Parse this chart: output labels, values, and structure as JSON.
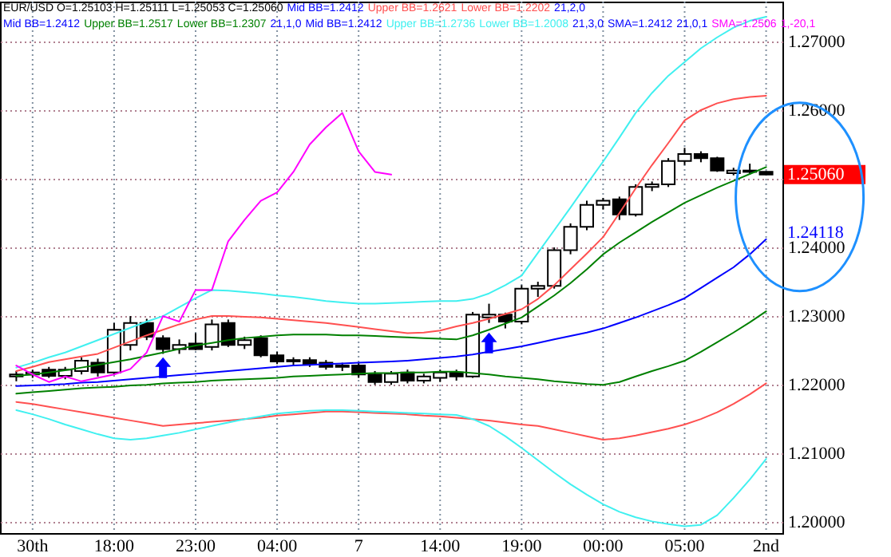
{
  "chart_data": {
    "type": "candlestick",
    "title": "EUR/USD O=1.25103 H=1.25111 L=1.25053 C=1.25060",
    "color": "#000000",
    "categories": [
      null,
      "30th",
      null,
      null,
      null,
      null,
      "18:00",
      null,
      null,
      null,
      null,
      "23:00",
      null,
      null,
      null,
      null,
      "04:00",
      null,
      null,
      null,
      null,
      "7",
      null,
      null,
      null,
      null,
      "14:00",
      null,
      null,
      null,
      null,
      "19:00",
      null,
      null,
      null,
      null,
      "00:00",
      null,
      null,
      null,
      null,
      "05:00",
      null,
      null,
      null,
      null,
      "2nd"
    ],
    "ohlc": [
      [
        1.2212,
        1.222,
        1.2205,
        1.2215
      ],
      [
        1.2215,
        1.2222,
        1.221,
        1.2218
      ],
      [
        1.2222,
        1.2226,
        1.221,
        1.2213
      ],
      [
        1.2213,
        1.2226,
        1.2208,
        1.2222
      ],
      [
        1.222,
        1.224,
        1.2215,
        1.2235
      ],
      [
        1.2232,
        1.2238,
        1.2212,
        1.2218
      ],
      [
        1.2218,
        1.229,
        1.2215,
        1.228
      ],
      [
        1.2258,
        1.23,
        1.225,
        1.229
      ],
      [
        1.229,
        1.2296,
        1.2265,
        1.227
      ],
      [
        1.2268,
        1.2272,
        1.2245,
        1.2252
      ],
      [
        1.2252,
        1.2266,
        1.2245,
        1.2258
      ],
      [
        1.226,
        1.2275,
        1.225,
        1.2252
      ],
      [
        1.2255,
        1.2295,
        1.225,
        1.2288
      ],
      [
        1.229,
        1.2295,
        1.2255,
        1.2258
      ],
      [
        1.2258,
        1.227,
        1.2252,
        1.2265
      ],
      [
        1.2268,
        1.2272,
        1.224,
        1.2243
      ],
      [
        1.2243,
        1.2248,
        1.223,
        1.2234
      ],
      [
        1.2234,
        1.224,
        1.2228,
        1.2236
      ],
      [
        1.2236,
        1.224,
        1.2226,
        1.223
      ],
      [
        1.2232,
        1.2236,
        1.2222,
        1.2226
      ],
      [
        1.2226,
        1.2232,
        1.222,
        1.2228
      ],
      [
        1.2228,
        1.2232,
        1.221,
        1.2215
      ],
      [
        1.2215,
        1.222,
        1.22,
        1.2204
      ],
      [
        1.2204,
        1.222,
        1.22,
        1.2216
      ],
      [
        1.2218,
        1.2222,
        1.2202,
        1.2206
      ],
      [
        1.2206,
        1.2216,
        1.2202,
        1.2212
      ],
      [
        1.221,
        1.2222,
        1.2204,
        1.2218
      ],
      [
        1.2218,
        1.2222,
        1.2206,
        1.2212
      ],
      [
        1.2212,
        1.2306,
        1.221,
        1.2302
      ],
      [
        1.2298,
        1.2318,
        1.229,
        1.2302
      ],
      [
        1.2302,
        1.2305,
        1.2282,
        1.2292
      ],
      [
        1.2292,
        1.2345,
        1.2288,
        1.234
      ],
      [
        1.234,
        1.235,
        1.2328,
        1.2344
      ],
      [
        1.2344,
        1.24,
        1.234,
        1.2396
      ],
      [
        1.2396,
        1.2435,
        1.239,
        1.243
      ],
      [
        1.243,
        1.2468,
        1.2425,
        1.2462
      ],
      [
        1.2462,
        1.2472,
        1.2455,
        1.2468
      ],
      [
        1.247,
        1.2474,
        1.244,
        1.2448
      ],
      [
        1.2448,
        1.2492,
        1.2445,
        1.2488
      ],
      [
        1.2488,
        1.2496,
        1.2482,
        1.2492
      ],
      [
        1.2492,
        1.253,
        1.2488,
        1.2526
      ],
      [
        1.2526,
        1.2545,
        1.252,
        1.2536
      ],
      [
        1.2536,
        1.254,
        1.2524,
        1.253
      ],
      [
        1.253,
        1.2532,
        1.251,
        1.2512
      ],
      [
        1.2508,
        1.2516,
        1.2505,
        1.2512
      ],
      [
        1.2512,
        1.2522,
        1.2506,
        1.251
      ],
      [
        1.25103,
        1.25111,
        1.25053,
        1.2506
      ]
    ],
    "series": [
      {
        "type": "line",
        "color": "#ff5050",
        "values": [
          1.222,
          1.2226,
          1.2233,
          1.2237,
          1.2241,
          1.2245,
          1.2254,
          1.2263,
          1.2272,
          1.228,
          1.2288,
          1.2295,
          1.23,
          1.23,
          1.2299,
          1.2298,
          1.2296,
          1.2294,
          1.2292,
          1.229,
          1.2287,
          1.2284,
          1.2281,
          1.2278,
          1.2275,
          1.2276,
          1.2279,
          1.2285,
          1.229,
          1.2296,
          1.2303,
          1.231,
          1.2325,
          1.2345,
          1.2368,
          1.2391,
          1.2415,
          1.245,
          1.2486,
          1.252,
          1.2552,
          1.2585,
          1.26,
          1.261,
          1.2616,
          1.2619,
          1.2621
        ]
      },
      {
        "type": "line",
        "color": "#ff5050",
        "values": [
          1.2175,
          1.2172,
          1.2168,
          1.2164,
          1.216,
          1.2156,
          1.2152,
          1.2148,
          1.2144,
          1.214,
          1.2142,
          1.2144,
          1.2146,
          1.2148,
          1.215,
          1.2152,
          1.2155,
          1.2157,
          1.2159,
          1.2161,
          1.2161,
          1.216,
          1.2159,
          1.2158,
          1.2157,
          1.2155,
          1.2154,
          1.2152,
          1.215,
          1.2148,
          1.2145,
          1.2142,
          1.214,
          1.2135,
          1.213,
          1.2125,
          1.212,
          1.2122,
          1.2126,
          1.2131,
          1.2136,
          1.2142,
          1.215,
          1.216,
          1.2172,
          1.2186,
          1.2202
        ]
      },
      {
        "type": "line",
        "color": "#008000",
        "values": [
          1.2213,
          1.2215,
          1.2218,
          1.2221,
          1.2225,
          1.2229,
          1.2233,
          1.2237,
          1.2242,
          1.2247,
          1.2252,
          1.2257,
          1.2261,
          1.2265,
          1.2268,
          1.227,
          1.2272,
          1.2273,
          1.2273,
          1.2273,
          1.2272,
          1.2272,
          1.2271,
          1.227,
          1.2269,
          1.2268,
          1.2267,
          1.2266,
          1.2272,
          1.228,
          1.2289,
          1.2298,
          1.2314,
          1.233,
          1.2348,
          1.2368,
          1.239,
          1.2407,
          1.2422,
          1.2437,
          1.2451,
          1.2465,
          1.2476,
          1.2487,
          1.2497,
          1.2507,
          1.2517
        ]
      },
      {
        "type": "line",
        "color": "#008000",
        "values": [
          1.2187,
          1.2189,
          1.2191,
          1.2193,
          1.2195,
          1.2196,
          1.2197,
          1.2199,
          1.22,
          1.2202,
          1.2203,
          1.2204,
          1.2206,
          1.2207,
          1.2208,
          1.2209,
          1.221,
          1.2212,
          1.2213,
          1.2214,
          1.2215,
          1.2216,
          1.2217,
          1.2217,
          1.2218,
          1.2218,
          1.2219,
          1.2219,
          1.2217,
          1.2215,
          1.2212,
          1.221,
          1.2208,
          1.2205,
          1.2203,
          1.2201,
          1.22,
          1.2204,
          1.2212,
          1.222,
          1.2227,
          1.2235,
          1.2248,
          1.2262,
          1.2276,
          1.2291,
          1.2307
        ]
      },
      {
        "type": "line",
        "color": "#40f0f0",
        "values": [
          1.2225,
          1.2232,
          1.224,
          1.2247,
          1.2256,
          1.2265,
          1.2274,
          1.2283,
          1.2292,
          1.23,
          1.2313,
          1.2326,
          1.2338,
          1.2337,
          1.2335,
          1.2333,
          1.233,
          1.2328,
          1.2325,
          1.2322,
          1.232,
          1.2318,
          1.2318,
          1.2319,
          1.232,
          1.2321,
          1.2322,
          1.2322,
          1.2325,
          1.2333,
          1.2345,
          1.2359,
          1.2392,
          1.2425,
          1.2458,
          1.2492,
          1.2525,
          1.256,
          1.2596,
          1.2625,
          1.265,
          1.267,
          1.269,
          1.2706,
          1.272,
          1.273,
          1.2736
        ]
      },
      {
        "type": "line",
        "color": "#40f0f0",
        "values": [
          1.2163,
          1.2157,
          1.215,
          1.2142,
          1.2135,
          1.2128,
          1.2122,
          1.212,
          1.2122,
          1.2126,
          1.213,
          1.2135,
          1.214,
          1.2145,
          1.215,
          1.2154,
          1.2158,
          1.216,
          1.2162,
          1.2163,
          1.2163,
          1.2162,
          1.2161,
          1.216,
          1.2159,
          1.2158,
          1.2157,
          1.2156,
          1.215,
          1.214,
          1.2125,
          1.2108,
          1.209,
          1.2072,
          1.2055,
          1.204,
          1.2026,
          1.2015,
          1.2007,
          1.2001,
          1.1997,
          1.1994,
          1.1996,
          1.201,
          1.2035,
          1.2062,
          1.2092
        ]
      },
      {
        "type": "line",
        "color": "#0000ff",
        "values": [
          1.2198,
          1.2199,
          1.22,
          1.2201,
          1.2203,
          1.2204,
          1.2206,
          1.2208,
          1.221,
          1.2212,
          1.2214,
          1.2216,
          1.2218,
          1.222,
          1.2222,
          1.2224,
          1.2226,
          1.2228,
          1.2229,
          1.223,
          1.2231,
          1.2232,
          1.2233,
          1.2234,
          1.2235,
          1.2237,
          1.2239,
          1.2241,
          1.2244,
          1.2248,
          1.2252,
          1.2256,
          1.2261,
          1.2266,
          1.2271,
          1.2276,
          1.2282,
          1.229,
          1.2298,
          1.2307,
          1.2316,
          1.2326,
          1.2341,
          1.2356,
          1.2371,
          1.239,
          1.2412
        ]
      },
      {
        "type": "line",
        "color": "#ff00ff",
        "values": [
          1.2228,
          1.2215,
          1.2204,
          1.2212,
          1.2205,
          1.221,
          1.2215,
          1.2223,
          1.2247,
          1.23,
          1.2292,
          1.2338,
          1.2338,
          1.2409,
          1.244,
          1.2468,
          1.248,
          1.251,
          1.255,
          1.2575,
          1.2596,
          1.254,
          1.251,
          1.2506,
          null,
          null,
          null,
          null,
          null,
          null,
          null,
          null,
          null,
          null,
          null,
          null,
          null,
          null,
          null,
          null,
          null,
          null,
          null,
          null,
          null,
          null,
          null
        ]
      }
    ],
    "annotations": [
      "Mid BB=1.2412",
      "Upper BB=1.2621",
      "Lower BB=1.2202",
      "21,2,0",
      "Mid BB=1.2412",
      "Upper BB=1.2517",
      "Lower BB=1.2307",
      "21,1,0",
      "Mid BB=1.2412",
      "Upper BB=1.2736",
      "Lower BB=1.2008",
      "21,3,0",
      "SMA=1.2412",
      "21,0,1",
      "SMA=1.2506",
      "1,-20,1",
      "1.25060",
      "1.24118"
    ],
    "ylim": [
      1.1984,
      1.2758
    ],
    "yticks": [
      {
        "value": 1.2,
        "label": "1.20000"
      },
      {
        "value": 1.21,
        "label": "1.21000"
      },
      {
        "value": 1.22,
        "label": "1.22000"
      },
      {
        "value": 1.23,
        "label": "1.23000"
      },
      {
        "value": 1.24,
        "label": "1.24000"
      },
      {
        "value": 1.25,
        "label": null
      },
      {
        "value": 1.26,
        "label": "1.26000"
      },
      {
        "value": 1.27,
        "label": "1.27000"
      }
    ],
    "grid": true
  }
}
